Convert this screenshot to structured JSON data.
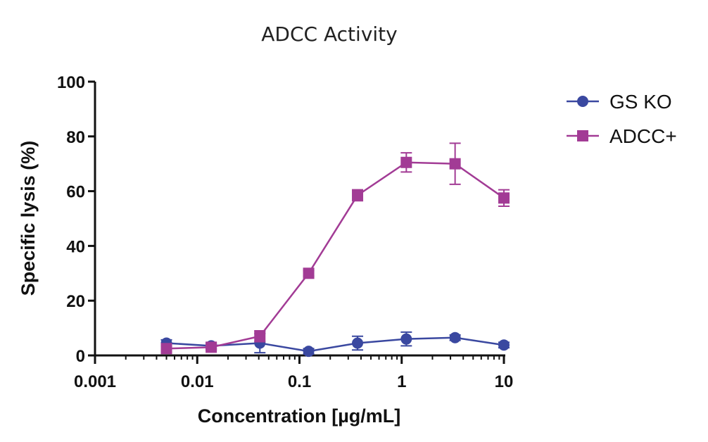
{
  "chart_data": {
    "type": "line",
    "title": "ADCC Activity",
    "xlabel": "Concentration [µg/mL]",
    "ylabel": "Specific lysis (%)",
    "x_scale": "log",
    "xlim": [
      0.001,
      10
    ],
    "ylim": [
      0,
      100
    ],
    "x_ticks": [
      {
        "value": 0.001,
        "label": "0.001"
      },
      {
        "value": 0.01,
        "label": "0.01"
      },
      {
        "value": 0.1,
        "label": "0.1"
      },
      {
        "value": 1,
        "label": "1"
      },
      {
        "value": 10,
        "label": "10"
      }
    ],
    "y_ticks": [
      {
        "value": 0,
        "label": "0"
      },
      {
        "value": 20,
        "label": "20"
      },
      {
        "value": 40,
        "label": "40"
      },
      {
        "value": 60,
        "label": "60"
      },
      {
        "value": 80,
        "label": "80"
      },
      {
        "value": 100,
        "label": "100"
      }
    ],
    "grid": false,
    "legend_position": "top-right",
    "series": [
      {
        "name": "GS KO",
        "marker": "circle",
        "color": "#3a48a0",
        "points": [
          {
            "x": 0.005,
            "y": 4.5,
            "err": 1.2
          },
          {
            "x": 0.0137,
            "y": 3.5,
            "err": 1.0
          },
          {
            "x": 0.041,
            "y": 4.5,
            "err": 3.5
          },
          {
            "x": 0.123,
            "y": 1.5,
            "err": 1.0
          },
          {
            "x": 0.37,
            "y": 4.5,
            "err": 2.5
          },
          {
            "x": 1.11,
            "y": 6.0,
            "err": 2.5
          },
          {
            "x": 3.33,
            "y": 6.5,
            "err": 1.0
          },
          {
            "x": 10,
            "y": 3.8,
            "err": 1.0
          }
        ]
      },
      {
        "name": "ADCC+",
        "marker": "square",
        "color": "#a23b95",
        "points": [
          {
            "x": 0.005,
            "y": 2.5,
            "err": 1.0
          },
          {
            "x": 0.0137,
            "y": 3.0,
            "err": 1.0
          },
          {
            "x": 0.041,
            "y": 7.0,
            "err": 2.0
          },
          {
            "x": 0.123,
            "y": 30.0,
            "err": 1.0
          },
          {
            "x": 0.37,
            "y": 58.5,
            "err": 2.0
          },
          {
            "x": 1.11,
            "y": 70.5,
            "err": 3.5
          },
          {
            "x": 3.33,
            "y": 70.0,
            "err": 7.5
          },
          {
            "x": 10,
            "y": 57.5,
            "err": 3.0
          }
        ]
      }
    ]
  }
}
